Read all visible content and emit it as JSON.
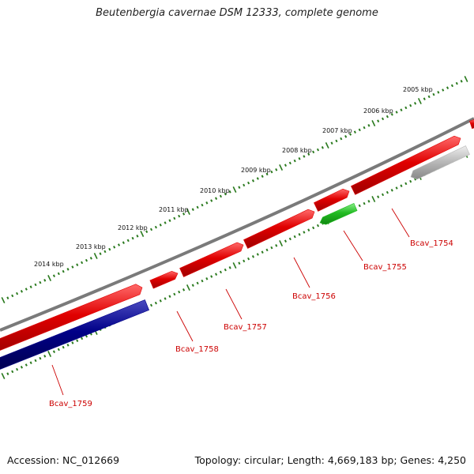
{
  "title": "Beutenbergia cavernae DSM 12333, complete genome",
  "accession": "Accession: NC_012669",
  "summary": "Topology: circular; Length: 4,669,183 bp; Genes: 4,250",
  "colors": {
    "backbone": "#808080",
    "tick": "#2a7a1e",
    "forward_gene": "#e00000",
    "reverse_gene": "#000088",
    "green_gene": "#22bb22",
    "gray_gene": "#bbbbbb",
    "label": "#cc0000"
  },
  "scale": {
    "unit": "kbp",
    "labels": [
      "2005 kbp",
      "2006 kbp",
      "2007 kbp",
      "2008 kbp",
      "2009 kbp",
      "2010 kbp",
      "2011 kbp",
      "2012 kbp",
      "2013 kbp",
      "2014 kbp"
    ]
  },
  "genes": [
    {
      "id": "g1759",
      "label": "Bcav_1759",
      "color": "forward_gene",
      "strand": "forward"
    },
    {
      "id": "g1759r",
      "label": "",
      "color": "reverse_gene",
      "strand": "reverse"
    },
    {
      "id": "g1758",
      "label": "Bcav_1758",
      "color": "forward_gene",
      "strand": "forward"
    },
    {
      "id": "g1757",
      "label": "Bcav_1757",
      "color": "forward_gene",
      "strand": "forward"
    },
    {
      "id": "g1756",
      "label": "Bcav_1756",
      "color": "forward_gene",
      "strand": "forward"
    },
    {
      "id": "g1755",
      "label": "Bcav_1755",
      "color": "green_gene",
      "strand": "reverse"
    },
    {
      "id": "g1755a",
      "label": "",
      "color": "forward_gene",
      "strand": "forward"
    },
    {
      "id": "g1754",
      "label": "Bcav_1754",
      "color": "forward_gene",
      "strand": "forward"
    },
    {
      "id": "g1754r",
      "label": "",
      "color": "gray_gene",
      "strand": "reverse"
    },
    {
      "id": "gEdge",
      "label": "",
      "color": "forward_gene",
      "strand": "forward"
    }
  ]
}
